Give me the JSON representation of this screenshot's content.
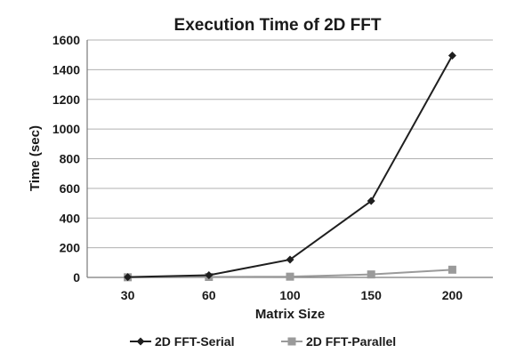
{
  "chart_data": {
    "type": "line",
    "title": "Execution Time of 2D FFT",
    "xlabel": "Matrix Size",
    "ylabel": "Time (sec)",
    "categories": [
      "30",
      "60",
      "100",
      "150",
      "200"
    ],
    "ylim": [
      0,
      1600
    ],
    "yticks": [
      0,
      200,
      400,
      600,
      800,
      1000,
      1200,
      1400,
      1600
    ],
    "grid": true,
    "legend_position": "bottom",
    "series": [
      {
        "name": "2D FFT-Serial",
        "values": [
          2,
          15,
          120,
          515,
          1495
        ],
        "color": "#1f1f1f",
        "marker": "diamond"
      },
      {
        "name": "2D FFT-Parallel",
        "values": [
          1,
          3,
          5,
          20,
          52
        ],
        "color": "#9a9a9a",
        "marker": "square"
      }
    ]
  }
}
